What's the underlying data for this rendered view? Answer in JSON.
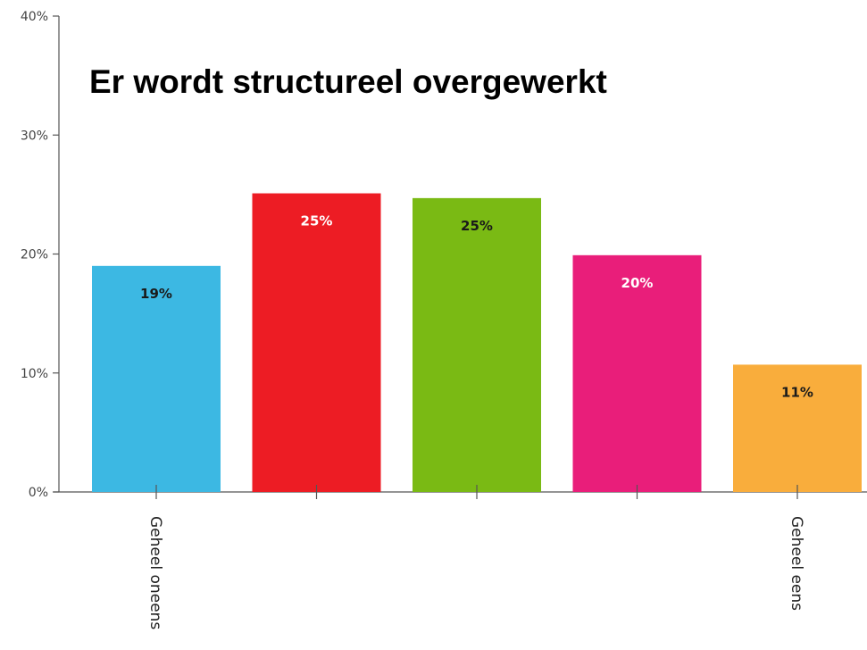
{
  "chart_data": {
    "type": "bar",
    "title": "Er wordt structureel overgewerkt",
    "xlabel": "",
    "ylabel": "",
    "ylim": [
      0,
      40
    ],
    "yticks": [
      {
        "value": 0,
        "label": "0%"
      },
      {
        "value": 10,
        "label": "10%"
      },
      {
        "value": 20,
        "label": "20%"
      },
      {
        "value": 30,
        "label": "30%"
      },
      {
        "value": 40,
        "label": "40%"
      }
    ],
    "categories": [
      "Geheel oneens",
      "",
      "",
      "",
      "Geheel eens"
    ],
    "values": [
      19,
      25.1,
      24.7,
      19.9,
      10.7
    ],
    "data_labels": [
      "19%",
      "25%",
      "25%",
      "20%",
      "11%"
    ],
    "colors": [
      "#3cb8e3",
      "#ed1c24",
      "#7aba14",
      "#e91e7a",
      "#f9ad3c"
    ],
    "label_colors": [
      "#1a1a1a",
      "#ffffff",
      "#1a1a1a",
      "#ffffff",
      "#1a1a1a"
    ],
    "grid": false,
    "legend": "none"
  }
}
